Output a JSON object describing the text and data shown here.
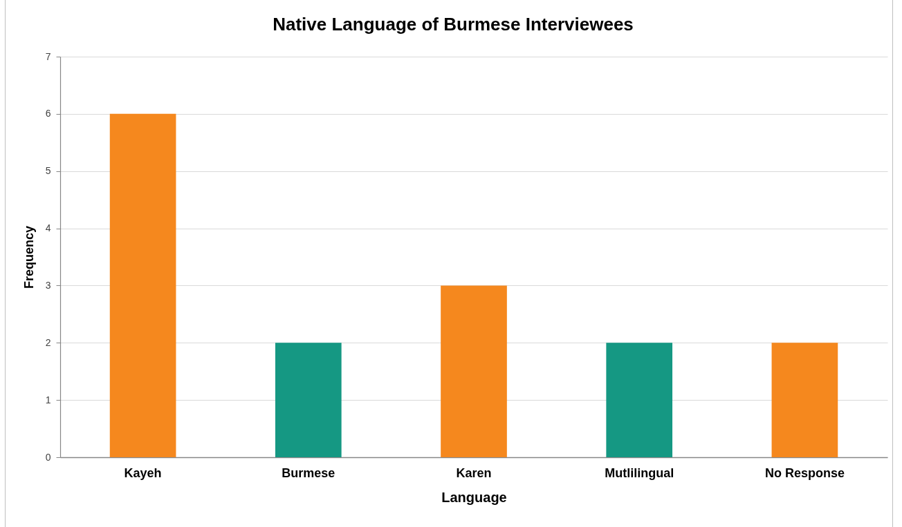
{
  "chart_data": {
    "type": "bar",
    "title": "Native Language of Burmese Interviewees",
    "xlabel": "Language",
    "ylabel": "Frequency",
    "categories": [
      "Kayeh",
      "Burmese",
      "Karen",
      "Mutlilingual",
      "No Response"
    ],
    "values": [
      6,
      2,
      3,
      2,
      2
    ],
    "colors": [
      "#f5881e",
      "#159883",
      "#f5881e",
      "#159883",
      "#f5881e"
    ],
    "ylim": [
      0,
      7
    ],
    "yticks": [
      0,
      1,
      2,
      3,
      4,
      5,
      6,
      7
    ],
    "grid": "y"
  }
}
